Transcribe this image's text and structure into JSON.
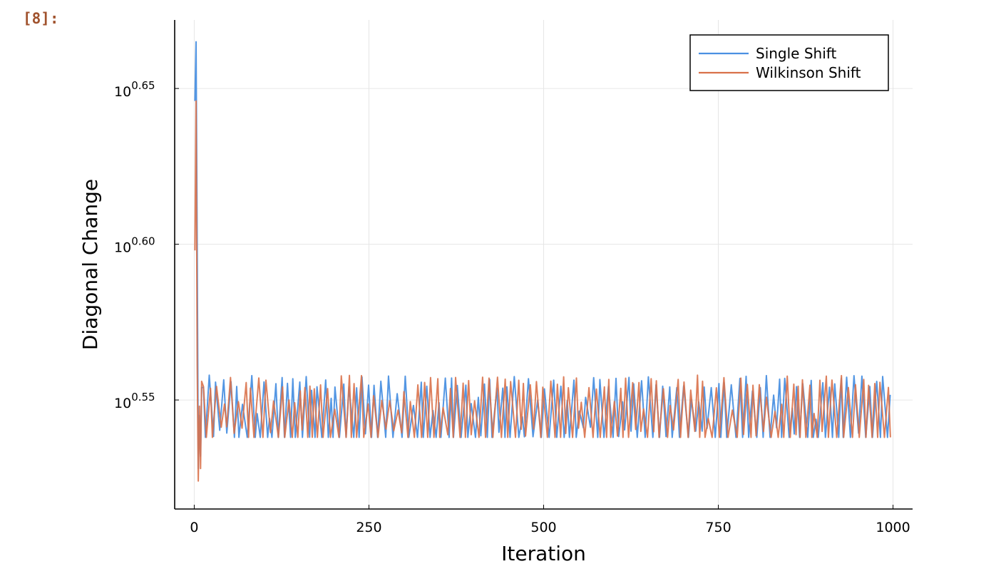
{
  "cell": {
    "prompt": "[8]:"
  },
  "chart_data": {
    "type": "line",
    "title": "",
    "xlabel": "Iteration",
    "ylabel": "Diagonal Change",
    "x_range": [
      0,
      1000
    ],
    "xlim": [
      -28,
      1028
    ],
    "y_scale": "log10",
    "ylim_log10": [
      0.515,
      0.672
    ],
    "x_ticks": [
      0,
      250,
      500,
      750,
      1000
    ],
    "x_tick_labels": [
      "0",
      "250",
      "500",
      "750",
      "1000"
    ],
    "y_ticks_log10": [
      0.55,
      0.6,
      0.65
    ],
    "y_tick_base": "10",
    "y_tick_exponents": [
      "0.55",
      "0.60",
      "0.65"
    ],
    "grid": true,
    "legend": {
      "position": "top-right"
    },
    "series": [
      {
        "name": "Single Shift",
        "color": "#4a90e2",
        "log10_values_head": [
          0.646,
          0.665,
          0.598,
          0.528,
          0.545,
          0.532,
          0.554
        ],
        "log10_low": 0.538,
        "log10_high": 0.558
      },
      {
        "name": "Wilkinson Shift",
        "color": "#d9714a",
        "log10_values_head": [
          0.598,
          0.646,
          0.561,
          0.524,
          0.548,
          0.528,
          0.556
        ],
        "log10_low": 0.538,
        "log10_high": 0.558
      }
    ]
  }
}
